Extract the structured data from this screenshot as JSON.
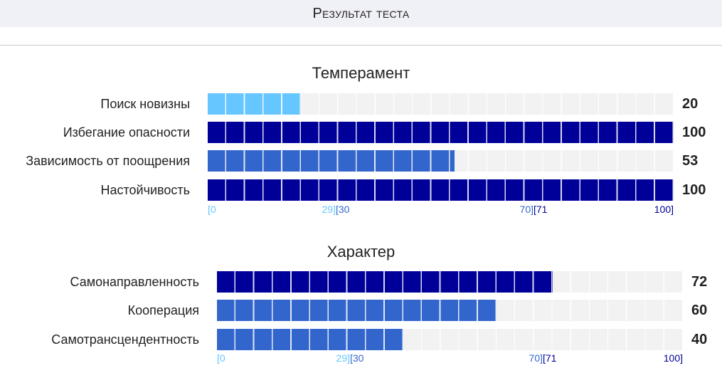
{
  "header": {
    "title": "Результат теста"
  },
  "colors": {
    "low": "#66c6ff",
    "mid": "#3366cc",
    "high": "#000099",
    "track": "#f2f2f2"
  },
  "sections": [
    {
      "title": "Темперамент",
      "rows": [
        {
          "label": "Поиск новизны",
          "value": "20",
          "percent": 20,
          "level": "low"
        },
        {
          "label": "Избегание опасности",
          "value": "100",
          "percent": 100,
          "level": "high"
        },
        {
          "label": "Зависимость от поощрения",
          "value": "53",
          "percent": 53,
          "level": "mid"
        },
        {
          "label": "Настойчивость",
          "value": "100",
          "percent": 100,
          "level": "high"
        }
      ],
      "scale": {
        "t0": "[0",
        "t1": "29]",
        "t2": "[30",
        "t3": "70]",
        "t4": "[71",
        "t5": "100]"
      }
    },
    {
      "title": "Характер",
      "rows": [
        {
          "label": "Самонаправленность",
          "value": "72",
          "percent": 72,
          "level": "high"
        },
        {
          "label": "Кооперация",
          "value": "60",
          "percent": 60,
          "level": "mid"
        },
        {
          "label": "Самотрансцендентность",
          "value": "40",
          "percent": 40,
          "level": "mid"
        }
      ],
      "scale": {
        "t0": "[0",
        "t1": "29]",
        "t2": "[30",
        "t3": "70]",
        "t4": "[71",
        "t5": "100]"
      }
    }
  ]
}
